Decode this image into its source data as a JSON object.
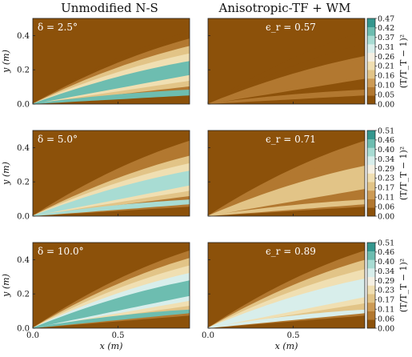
{
  "column_titles": [
    "Unmodified N-S",
    "Anisotropic-TF + WM"
  ],
  "chart_data": {
    "type": "heatmap",
    "description_rows": "three rows of paired filled-contour plots",
    "xlabel": "x (m)",
    "ylabel": "y (m)",
    "colorbar_label": "(T/T_T − 1)²",
    "xlim": [
      0.0,
      0.92
    ],
    "ylim": [
      0.0,
      0.5
    ],
    "x_ticks": [
      0.0,
      0.5
    ],
    "x_tick_labels": [
      "0.0",
      "0.5"
    ],
    "y_ticks": [
      0.0,
      0.2,
      0.4
    ],
    "y_tick_labels": [
      "0.0",
      "0.2",
      "0.4"
    ],
    "colors": [
      "#8c510a",
      "#b27830",
      "#cd9b55",
      "#e2c487",
      "#f0dfb2",
      "#f5f0e3",
      "#d8eeeb",
      "#a8dcd3",
      "#6dbdb0",
      "#34978e",
      "#0f6d60",
      "#01473d"
    ],
    "rows": [
      {
        "delta_label": "δ = 2.5°",
        "eps_label": "ϵ_r = 0.57",
        "colorbar_ticks": [
          "0.00",
          "0.05",
          "0.10",
          "0.16",
          "0.21",
          "0.26",
          "0.31",
          "0.37",
          "0.42",
          "0.47"
        ],
        "levels_left": [
          0.45,
          0.26,
          0.16,
          0.1,
          0.05
        ],
        "levels_right": [
          0.1,
          0.05,
          0.02
        ]
      },
      {
        "delta_label": "δ = 5.0°",
        "eps_label": "ϵ_r = 0.71",
        "colorbar_ticks": [
          "0.00",
          "0.06",
          "0.11",
          "0.17",
          "0.23",
          "0.29",
          "0.34",
          "0.40",
          "0.46",
          "0.51"
        ],
        "levels_left": [
          0.4,
          0.23,
          0.17,
          0.11,
          0.06
        ],
        "levels_right": [
          0.17,
          0.11,
          0.06
        ]
      },
      {
        "delta_label": "δ = 10.0°",
        "eps_label": "ϵ_r = 0.89",
        "colorbar_ticks": [
          "0.00",
          "0.06",
          "0.11",
          "0.17",
          "0.23",
          "0.29",
          "0.34",
          "0.40",
          "0.46",
          "0.51"
        ],
        "levels_left": [
          0.46,
          0.34,
          0.23,
          0.17,
          0.11
        ],
        "levels_right": [
          0.34,
          0.23,
          0.17,
          0.11
        ]
      }
    ]
  }
}
